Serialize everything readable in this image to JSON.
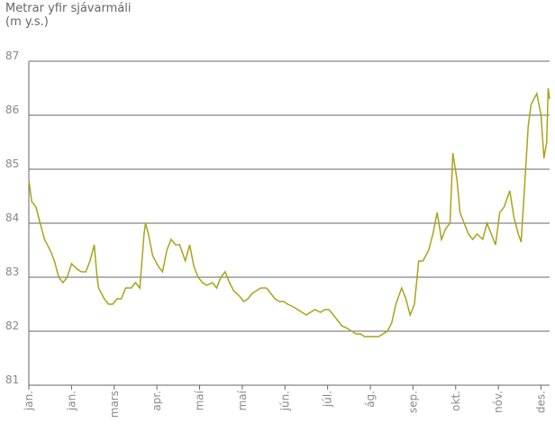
{
  "chart_data": {
    "type": "line",
    "y_axis_label": [
      "Metrar yfir sjávarmáli",
      "(m y.s.)"
    ],
    "x": [
      0,
      2,
      5,
      8,
      11,
      15,
      18,
      21,
      24,
      27,
      30,
      34,
      37,
      40,
      43,
      46,
      48,
      49,
      53,
      56,
      59,
      62,
      65,
      68,
      72,
      75,
      78,
      81,
      82,
      84,
      87,
      91,
      94,
      97,
      100,
      103,
      106,
      110,
      113,
      116,
      119,
      122,
      125,
      129,
      132,
      135,
      138,
      141,
      144,
      148,
      151,
      154,
      157,
      160,
      163,
      167,
      170,
      173,
      176,
      179,
      182,
      186,
      189,
      192,
      195,
      198,
      201,
      205,
      208,
      211,
      214,
      217,
      220,
      224,
      227,
      230,
      233,
      236,
      239,
      243,
      246,
      249,
      252,
      255,
      258,
      262,
      265,
      268,
      271,
      274,
      277,
      281,
      284,
      287,
      290,
      293,
      296,
      298,
      301,
      303,
      306,
      309,
      312,
      315,
      319,
      322,
      325,
      328,
      331,
      334,
      338,
      341,
      344,
      346,
      348,
      351,
      353,
      357,
      360,
      362,
      364,
      365,
      366
    ],
    "series": [
      {
        "color": "#a9a41a",
        "values": [
          84.8,
          84.4,
          84.3,
          84.0,
          83.7,
          83.5,
          83.3,
          83.0,
          82.9,
          83.0,
          83.25,
          83.15,
          83.1,
          83.1,
          83.3,
          83.6,
          83.0,
          82.8,
          82.6,
          82.5,
          82.5,
          82.6,
          82.6,
          82.8,
          82.8,
          82.9,
          82.8,
          83.8,
          84.0,
          83.8,
          83.4,
          83.2,
          83.1,
          83.5,
          83.7,
          83.6,
          83.6,
          83.3,
          83.6,
          83.2,
          83.0,
          82.9,
          82.85,
          82.9,
          82.8,
          83.0,
          83.1,
          82.9,
          82.75,
          82.65,
          82.55,
          82.6,
          82.7,
          82.75,
          82.8,
          82.8,
          82.7,
          82.6,
          82.55,
          82.55,
          82.5,
          82.45,
          82.4,
          82.35,
          82.3,
          82.35,
          82.4,
          82.35,
          82.4,
          82.4,
          82.3,
          82.2,
          82.1,
          82.05,
          82.0,
          81.95,
          81.95,
          81.9,
          81.9,
          81.9,
          81.9,
          81.95,
          82.0,
          82.15,
          82.5,
          82.8,
          82.6,
          82.3,
          82.5,
          83.3,
          83.3,
          83.5,
          83.8,
          84.2,
          83.7,
          83.9,
          84.0,
          85.3,
          84.8,
          84.2,
          84.0,
          83.8,
          83.7,
          83.8,
          83.7,
          84.0,
          83.8,
          83.6,
          84.2,
          84.3,
          84.6,
          84.1,
          83.8,
          83.65,
          84.5,
          85.8,
          86.2,
          86.4,
          86.0,
          85.2,
          85.5,
          86.5,
          86.3
        ]
      }
    ],
    "xlim": [
      0,
      366
    ],
    "xticks": [
      {
        "value": 0,
        "label": "jan."
      },
      {
        "value": 30,
        "label": "jan."
      },
      {
        "value": 60,
        "label": "mars"
      },
      {
        "value": 90,
        "label": "apr."
      },
      {
        "value": 120,
        "label": "maí"
      },
      {
        "value": 150,
        "label": "maí"
      },
      {
        "value": 180,
        "label": "jún."
      },
      {
        "value": 210,
        "label": "júl."
      },
      {
        "value": 240,
        "label": "ág."
      },
      {
        "value": 270,
        "label": "sep."
      },
      {
        "value": 300,
        "label": "okt."
      },
      {
        "value": 330,
        "label": "nóv."
      },
      {
        "value": 360,
        "label": "des."
      }
    ],
    "ylim": [
      81,
      87
    ],
    "yticks": [
      81,
      82,
      83,
      84,
      85,
      86,
      87
    ],
    "grid": true
  }
}
